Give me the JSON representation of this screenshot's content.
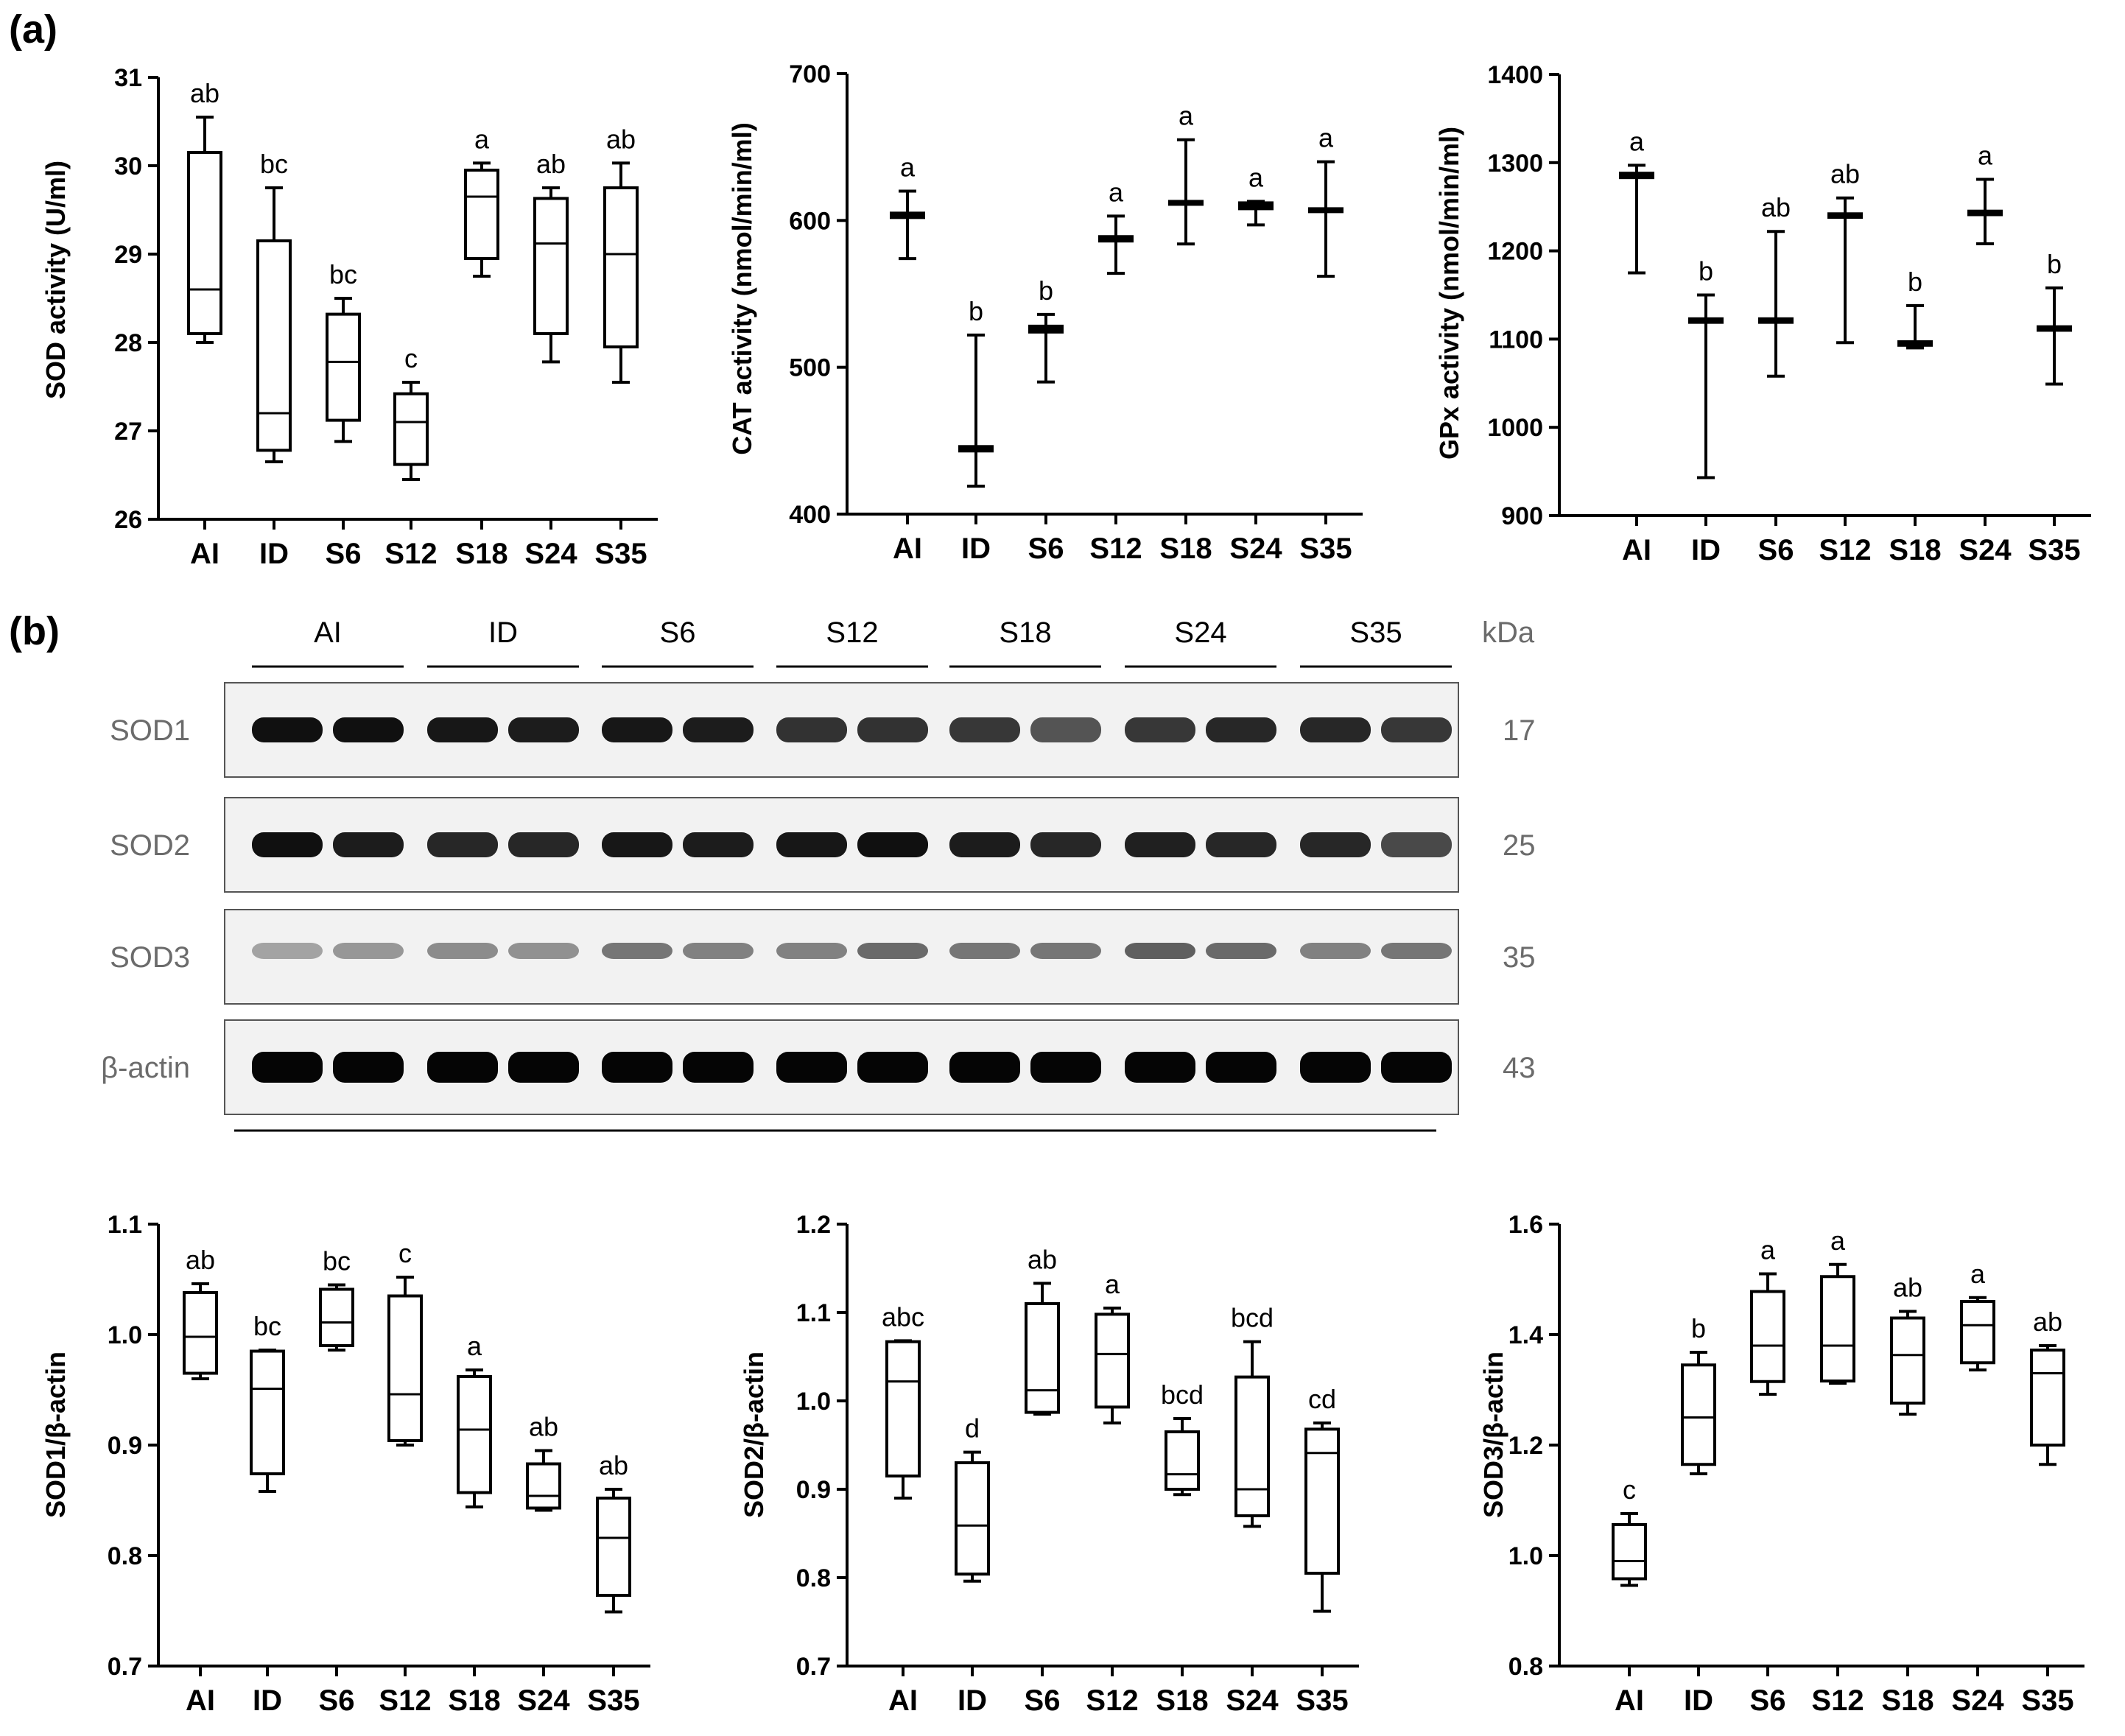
{
  "panels": {
    "a": "(a)",
    "b": "(b)"
  },
  "chart_data": [
    {
      "type": "box",
      "ylabel": "SOD activity (U/ml)",
      "ylim": [
        26,
        31
      ],
      "yticks": [
        "26",
        "27",
        "28",
        "29",
        "30",
        "31"
      ],
      "categories": [
        "AI",
        "ID",
        "S6",
        "S12",
        "S18",
        "S24",
        "S35"
      ],
      "boxes": [
        {
          "min": 28.0,
          "q1": 28.1,
          "median": 28.6,
          "q3": 30.15,
          "max": 30.55,
          "sig": "ab"
        },
        {
          "min": 26.65,
          "q1": 26.78,
          "median": 27.2,
          "q3": 29.15,
          "max": 29.75,
          "sig": "bc"
        },
        {
          "min": 26.88,
          "q1": 27.12,
          "median": 27.78,
          "q3": 28.32,
          "max": 28.5,
          "sig": "bc"
        },
        {
          "min": 26.45,
          "q1": 26.62,
          "median": 27.1,
          "q3": 27.42,
          "max": 27.55,
          "sig": "c"
        },
        {
          "min": 28.75,
          "q1": 28.95,
          "median": 29.65,
          "q3": 29.95,
          "max": 30.03,
          "sig": "a"
        },
        {
          "min": 27.78,
          "q1": 28.1,
          "median": 29.12,
          "q3": 29.63,
          "max": 29.75,
          "sig": "ab"
        },
        {
          "min": 27.55,
          "q1": 27.95,
          "median": 29.0,
          "q3": 29.75,
          "max": 30.03,
          "sig": "ab"
        }
      ]
    },
    {
      "type": "box",
      "ylabel": "CAT activity (nmol/min/ml)",
      "ylim": [
        400,
        700
      ],
      "yticks": [
        "400",
        "500",
        "600",
        "700"
      ],
      "categories": [
        "AI",
        "ID",
        "S6",
        "S12",
        "S18",
        "S24",
        "S35"
      ],
      "boxes": [
        {
          "min": 574,
          "q1": 602,
          "median": 603,
          "q3": 605,
          "max": 620,
          "sig": "a"
        },
        {
          "min": 419,
          "q1": 443,
          "median": 444,
          "q3": 446,
          "max": 522,
          "sig": "b"
        },
        {
          "min": 490,
          "q1": 524,
          "median": 526,
          "q3": 528,
          "max": 536,
          "sig": "b"
        },
        {
          "min": 564,
          "q1": 586,
          "median": 587,
          "q3": 589,
          "max": 603,
          "sig": "a"
        },
        {
          "min": 584,
          "q1": 611,
          "median": 612,
          "q3": 613,
          "max": 655,
          "sig": "a"
        },
        {
          "min": 597,
          "q1": 608,
          "median": 610,
          "q3": 612,
          "max": 613,
          "sig": "a"
        },
        {
          "min": 562,
          "q1": 606,
          "median": 607,
          "q3": 608,
          "max": 640,
          "sig": "a"
        }
      ]
    },
    {
      "type": "box",
      "ylabel": "GPx activity (nmol/min/ml)",
      "ylim": [
        900,
        1400
      ],
      "yticks": [
        "900",
        "1000",
        "1100",
        "1200",
        "1300",
        "1400"
      ],
      "categories": [
        "AI",
        "ID",
        "S6",
        "S12",
        "S18",
        "S24",
        "S35"
      ],
      "boxes": [
        {
          "min": 1175,
          "q1": 1283,
          "median": 1285,
          "q3": 1288,
          "max": 1297,
          "sig": "a"
        },
        {
          "min": 943,
          "q1": 1119,
          "median": 1121,
          "q3": 1123,
          "max": 1150,
          "sig": "b"
        },
        {
          "min": 1058,
          "q1": 1119,
          "median": 1121,
          "q3": 1123,
          "max": 1222,
          "sig": "ab"
        },
        {
          "min": 1096,
          "q1": 1238,
          "median": 1240,
          "q3": 1242,
          "max": 1260,
          "sig": "ab"
        },
        {
          "min": 1090,
          "q1": 1093,
          "median": 1095,
          "q3": 1097,
          "max": 1138,
          "sig": "b"
        },
        {
          "min": 1208,
          "q1": 1241,
          "median": 1243,
          "q3": 1245,
          "max": 1281,
          "sig": "a"
        },
        {
          "min": 1049,
          "q1": 1110,
          "median": 1112,
          "q3": 1114,
          "max": 1158,
          "sig": "b"
        }
      ]
    },
    {
      "type": "box",
      "ylabel": "SOD1/β-actin",
      "ylim": [
        0.7,
        1.1
      ],
      "yticks": [
        "0.7",
        "0.8",
        "0.9",
        "1.0",
        "1.1"
      ],
      "categories": [
        "AI",
        "ID",
        "S6",
        "S12",
        "S18",
        "S24",
        "S35"
      ],
      "boxes": [
        {
          "min": 0.96,
          "q1": 0.965,
          "median": 0.998,
          "q3": 1.038,
          "max": 1.046,
          "sig": "ab"
        },
        {
          "min": 0.858,
          "q1": 0.874,
          "median": 0.951,
          "q3": 0.985,
          "max": 0.986,
          "sig": "bc"
        },
        {
          "min": 0.986,
          "q1": 0.99,
          "median": 1.011,
          "q3": 1.041,
          "max": 1.045,
          "sig": "bc"
        },
        {
          "min": 0.9,
          "q1": 0.904,
          "median": 0.946,
          "q3": 1.035,
          "max": 1.052,
          "sig": "c"
        },
        {
          "min": 0.844,
          "q1": 0.857,
          "median": 0.914,
          "q3": 0.962,
          "max": 0.968,
          "sig": "a"
        },
        {
          "min": 0.841,
          "q1": 0.843,
          "median": 0.854,
          "q3": 0.883,
          "max": 0.895,
          "sig": "ab"
        },
        {
          "min": 0.749,
          "q1": 0.764,
          "median": 0.816,
          "q3": 0.852,
          "max": 0.86,
          "sig": "ab"
        }
      ]
    },
    {
      "type": "box",
      "ylabel": "SOD2/β-actin",
      "ylim": [
        0.7,
        1.2
      ],
      "yticks": [
        "0.7",
        "0.8",
        "0.9",
        "1.0",
        "1.1",
        "1.2"
      ],
      "categories": [
        "AI",
        "ID",
        "S6",
        "S12",
        "S18",
        "S24",
        "S35"
      ],
      "boxes": [
        {
          "min": 0.89,
          "q1": 0.915,
          "median": 1.022,
          "q3": 1.067,
          "max": 1.068,
          "sig": "abc"
        },
        {
          "min": 0.796,
          "q1": 0.804,
          "median": 0.859,
          "q3": 0.93,
          "max": 0.942,
          "sig": "d"
        },
        {
          "min": 0.985,
          "q1": 0.987,
          "median": 1.012,
          "q3": 1.11,
          "max": 1.133,
          "sig": "ab"
        },
        {
          "min": 0.975,
          "q1": 0.993,
          "median": 1.053,
          "q3": 1.098,
          "max": 1.105,
          "sig": "a"
        },
        {
          "min": 0.894,
          "q1": 0.9,
          "median": 0.917,
          "q3": 0.965,
          "max": 0.98,
          "sig": "bcd"
        },
        {
          "min": 0.858,
          "q1": 0.87,
          "median": 0.9,
          "q3": 1.027,
          "max": 1.067,
          "sig": "bcd"
        },
        {
          "min": 0.762,
          "q1": 0.805,
          "median": 0.941,
          "q3": 0.968,
          "max": 0.975,
          "sig": "cd"
        }
      ]
    },
    {
      "type": "box",
      "ylabel": "SOD3/β-actin",
      "ylim": [
        0.8,
        1.6
      ],
      "yticks": [
        "0.8",
        "1.0",
        "1.2",
        "1.4",
        "1.6"
      ],
      "categories": [
        "AI",
        "ID",
        "S6",
        "S12",
        "S18",
        "S24",
        "S35"
      ],
      "boxes": [
        {
          "min": 0.946,
          "q1": 0.958,
          "median": 0.99,
          "q3": 1.056,
          "max": 1.076,
          "sig": "c"
        },
        {
          "min": 1.148,
          "q1": 1.165,
          "median": 1.25,
          "q3": 1.345,
          "max": 1.368,
          "sig": "b"
        },
        {
          "min": 1.292,
          "q1": 1.315,
          "median": 1.38,
          "q3": 1.478,
          "max": 1.51,
          "sig": "a"
        },
        {
          "min": 1.312,
          "q1": 1.316,
          "median": 1.38,
          "q3": 1.505,
          "max": 1.527,
          "sig": "a"
        },
        {
          "min": 1.256,
          "q1": 1.276,
          "median": 1.363,
          "q3": 1.43,
          "max": 1.442,
          "sig": "ab"
        },
        {
          "min": 1.336,
          "q1": 1.349,
          "median": 1.417,
          "q3": 1.46,
          "max": 1.467,
          "sig": "a"
        },
        {
          "min": 1.165,
          "q1": 1.2,
          "median": 1.33,
          "q3": 1.372,
          "max": 1.38,
          "sig": "ab"
        }
      ]
    }
  ],
  "western_blot": {
    "groups": [
      "AI",
      "ID",
      "S6",
      "S12",
      "S18",
      "S24",
      "S35"
    ],
    "unit": "kDa",
    "rows": [
      {
        "name": "SOD1",
        "kda": "17"
      },
      {
        "name": "SOD2",
        "kda": "25"
      },
      {
        "name": "SOD3",
        "kda": "35"
      },
      {
        "name": "β-actin",
        "kda": "43"
      }
    ],
    "band_intensity": [
      [
        0.95,
        0.95,
        0.92,
        0.9,
        0.92,
        0.9,
        0.8,
        0.8,
        0.78,
        0.65,
        0.78,
        0.85,
        0.85,
        0.78
      ],
      [
        0.95,
        0.9,
        0.85,
        0.85,
        0.92,
        0.9,
        0.92,
        0.95,
        0.9,
        0.85,
        0.88,
        0.85,
        0.85,
        0.7
      ],
      [
        0.3,
        0.35,
        0.4,
        0.38,
        0.5,
        0.45,
        0.45,
        0.55,
        0.5,
        0.5,
        0.6,
        0.55,
        0.45,
        0.5
      ],
      [
        1,
        1,
        1,
        1,
        1,
        1,
        1,
        1,
        1,
        1,
        1,
        1,
        1,
        1
      ]
    ]
  }
}
